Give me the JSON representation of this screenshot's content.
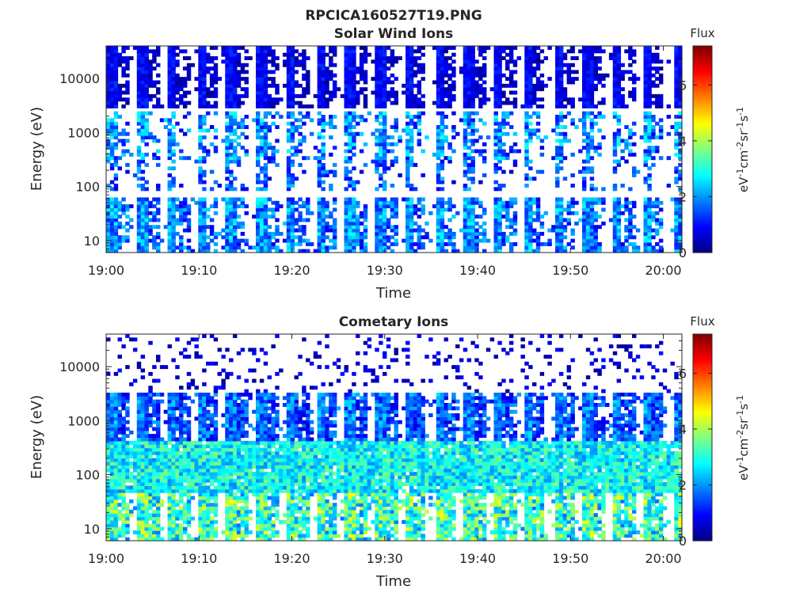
{
  "figure_title": "RPCICA160527T19.PNG",
  "chart_data": [
    {
      "type": "heatmap",
      "title": "Solar Wind Ions",
      "xlabel": "Time",
      "ylabel": "Energy (eV)",
      "y_scale": "log",
      "xlim": [
        "19:00",
        "20:02"
      ],
      "ylim": [
        6,
        40000
      ],
      "x_ticks": [
        "19:00",
        "19:10",
        "19:20",
        "19:30",
        "19:40",
        "19:50",
        "20:00"
      ],
      "y_ticks": [
        "10",
        "100",
        "1000",
        "10000"
      ],
      "y_tick_values": [
        10,
        100,
        1000,
        10000
      ],
      "colormap": "jet",
      "colorbar": {
        "title": "Flux",
        "label": "eV-1cm-2sr-1s-1",
        "label_parts": [
          {
            "t": "eV"
          },
          {
            "t": "-1",
            "sup": true
          },
          {
            "t": "cm"
          },
          {
            "t": "-2",
            "sup": true
          },
          {
            "t": "sr"
          },
          {
            "t": "-1",
            "sup": true
          },
          {
            "t": "s"
          },
          {
            "t": "-1",
            "sup": true
          }
        ],
        "ticks": [
          "0",
          "2",
          "4",
          "6"
        ],
        "tick_values": [
          0,
          2,
          4,
          6
        ],
        "range": [
          0,
          7.4
        ]
      },
      "grid": false,
      "bands": [
        {
          "e_min": 6,
          "e_max": 40000,
          "sweep_stripes": true,
          "stripe_period_min": 3.2
        },
        {
          "e_min": 2800,
          "e_max": 40000,
          "density": 0.55,
          "flux_mean": 0.5,
          "flux_spread": 0.4
        },
        {
          "e_min": 300,
          "e_max": 2500,
          "density": 0.3,
          "flux_mean": 1.6,
          "flux_spread": 1.0
        },
        {
          "e_min": 80,
          "e_max": 300,
          "density": 0.12,
          "flux_mean": 1.2,
          "flux_spread": 0.8
        },
        {
          "e_min": 6,
          "e_max": 60,
          "density": 0.55,
          "flux_mean": 1.6,
          "flux_spread": 0.9
        }
      ]
    },
    {
      "type": "heatmap",
      "title": "Cometary Ions",
      "xlabel": "Time",
      "ylabel": "Energy (eV)",
      "y_scale": "log",
      "xlim": [
        "19:00",
        "20:02"
      ],
      "ylim": [
        6,
        40000
      ],
      "x_ticks": [
        "19:00",
        "19:10",
        "19:20",
        "19:30",
        "19:40",
        "19:50",
        "20:00"
      ],
      "y_ticks": [
        "10",
        "100",
        "1000",
        "10000"
      ],
      "y_tick_values": [
        10,
        100,
        1000,
        10000
      ],
      "colormap": "jet",
      "colorbar": {
        "title": "Flux",
        "label": "eV-1cm-2sr-1s-1",
        "label_parts": [
          {
            "t": "eV"
          },
          {
            "t": "-1",
            "sup": true
          },
          {
            "t": "cm"
          },
          {
            "t": "-2",
            "sup": true
          },
          {
            "t": "sr"
          },
          {
            "t": "-1",
            "sup": true
          },
          {
            "t": "s"
          },
          {
            "t": "-1",
            "sup": true
          }
        ],
        "ticks": [
          "0",
          "2",
          "4",
          "6"
        ],
        "tick_values": [
          0,
          2,
          4,
          6
        ],
        "range": [
          0,
          7.4
        ]
      },
      "grid": false,
      "bands": [
        {
          "e_min": 3500,
          "e_max": 40000,
          "density": 0.12,
          "flux_mean": 0.6,
          "flux_spread": 0.5
        },
        {
          "e_min": 400,
          "e_max": 3500,
          "density": 0.8,
          "flux_mean": 1.4,
          "flux_spread": 0.8,
          "sweep_stripes": true,
          "stripe_period_min": 3.2
        },
        {
          "e_min": 50,
          "e_max": 400,
          "density": 0.95,
          "flux_mean": 2.8,
          "flux_spread": 0.9
        },
        {
          "e_min": 6,
          "e_max": 45,
          "density": 0.8,
          "flux_mean": 3.0,
          "flux_spread": 1.3,
          "sweep_stripes": true,
          "stripe_period_min": 3.2
        }
      ]
    }
  ]
}
